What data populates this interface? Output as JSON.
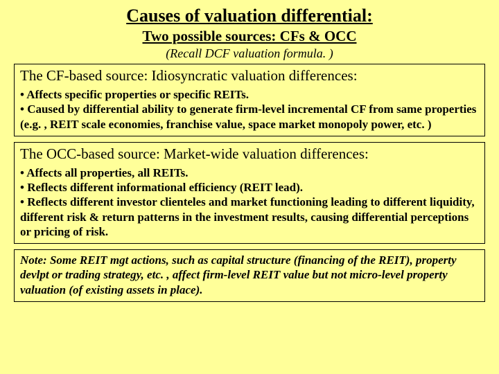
{
  "title": "Causes of valuation differential:",
  "subtitle": "Two possible sources: CFs & OCC",
  "recall": "(Recall DCF valuation formula. )",
  "section1": {
    "heading": "The CF-based source: Idiosyncratic valuation differences:",
    "bullets": [
      "• Affects specific properties or specific REITs.",
      "• Caused by differential ability to generate firm-level incremental CF from same properties (e.g. , REIT scale economies, franchise value, space market monopoly power, etc. )"
    ]
  },
  "section2": {
    "heading": "The OCC-based source: Market-wide valuation differences:",
    "bullets": [
      "• Affects all properties, all REITs.",
      "• Reflects different informational efficiency (REIT lead).",
      "• Reflects different investor clienteles and market functioning leading to different liquidity, different risk & return patterns in the investment results, causing differential perceptions or pricing of risk."
    ]
  },
  "note": "Note: Some REIT mgt actions, such as capital structure (financing of the REIT), property devlpt or trading strategy, etc. , affect firm-level REIT value but not micro-level property valuation (of existing assets in place).",
  "colors": {
    "background": "#ffff99",
    "text": "#000000",
    "border": "#000000"
  }
}
